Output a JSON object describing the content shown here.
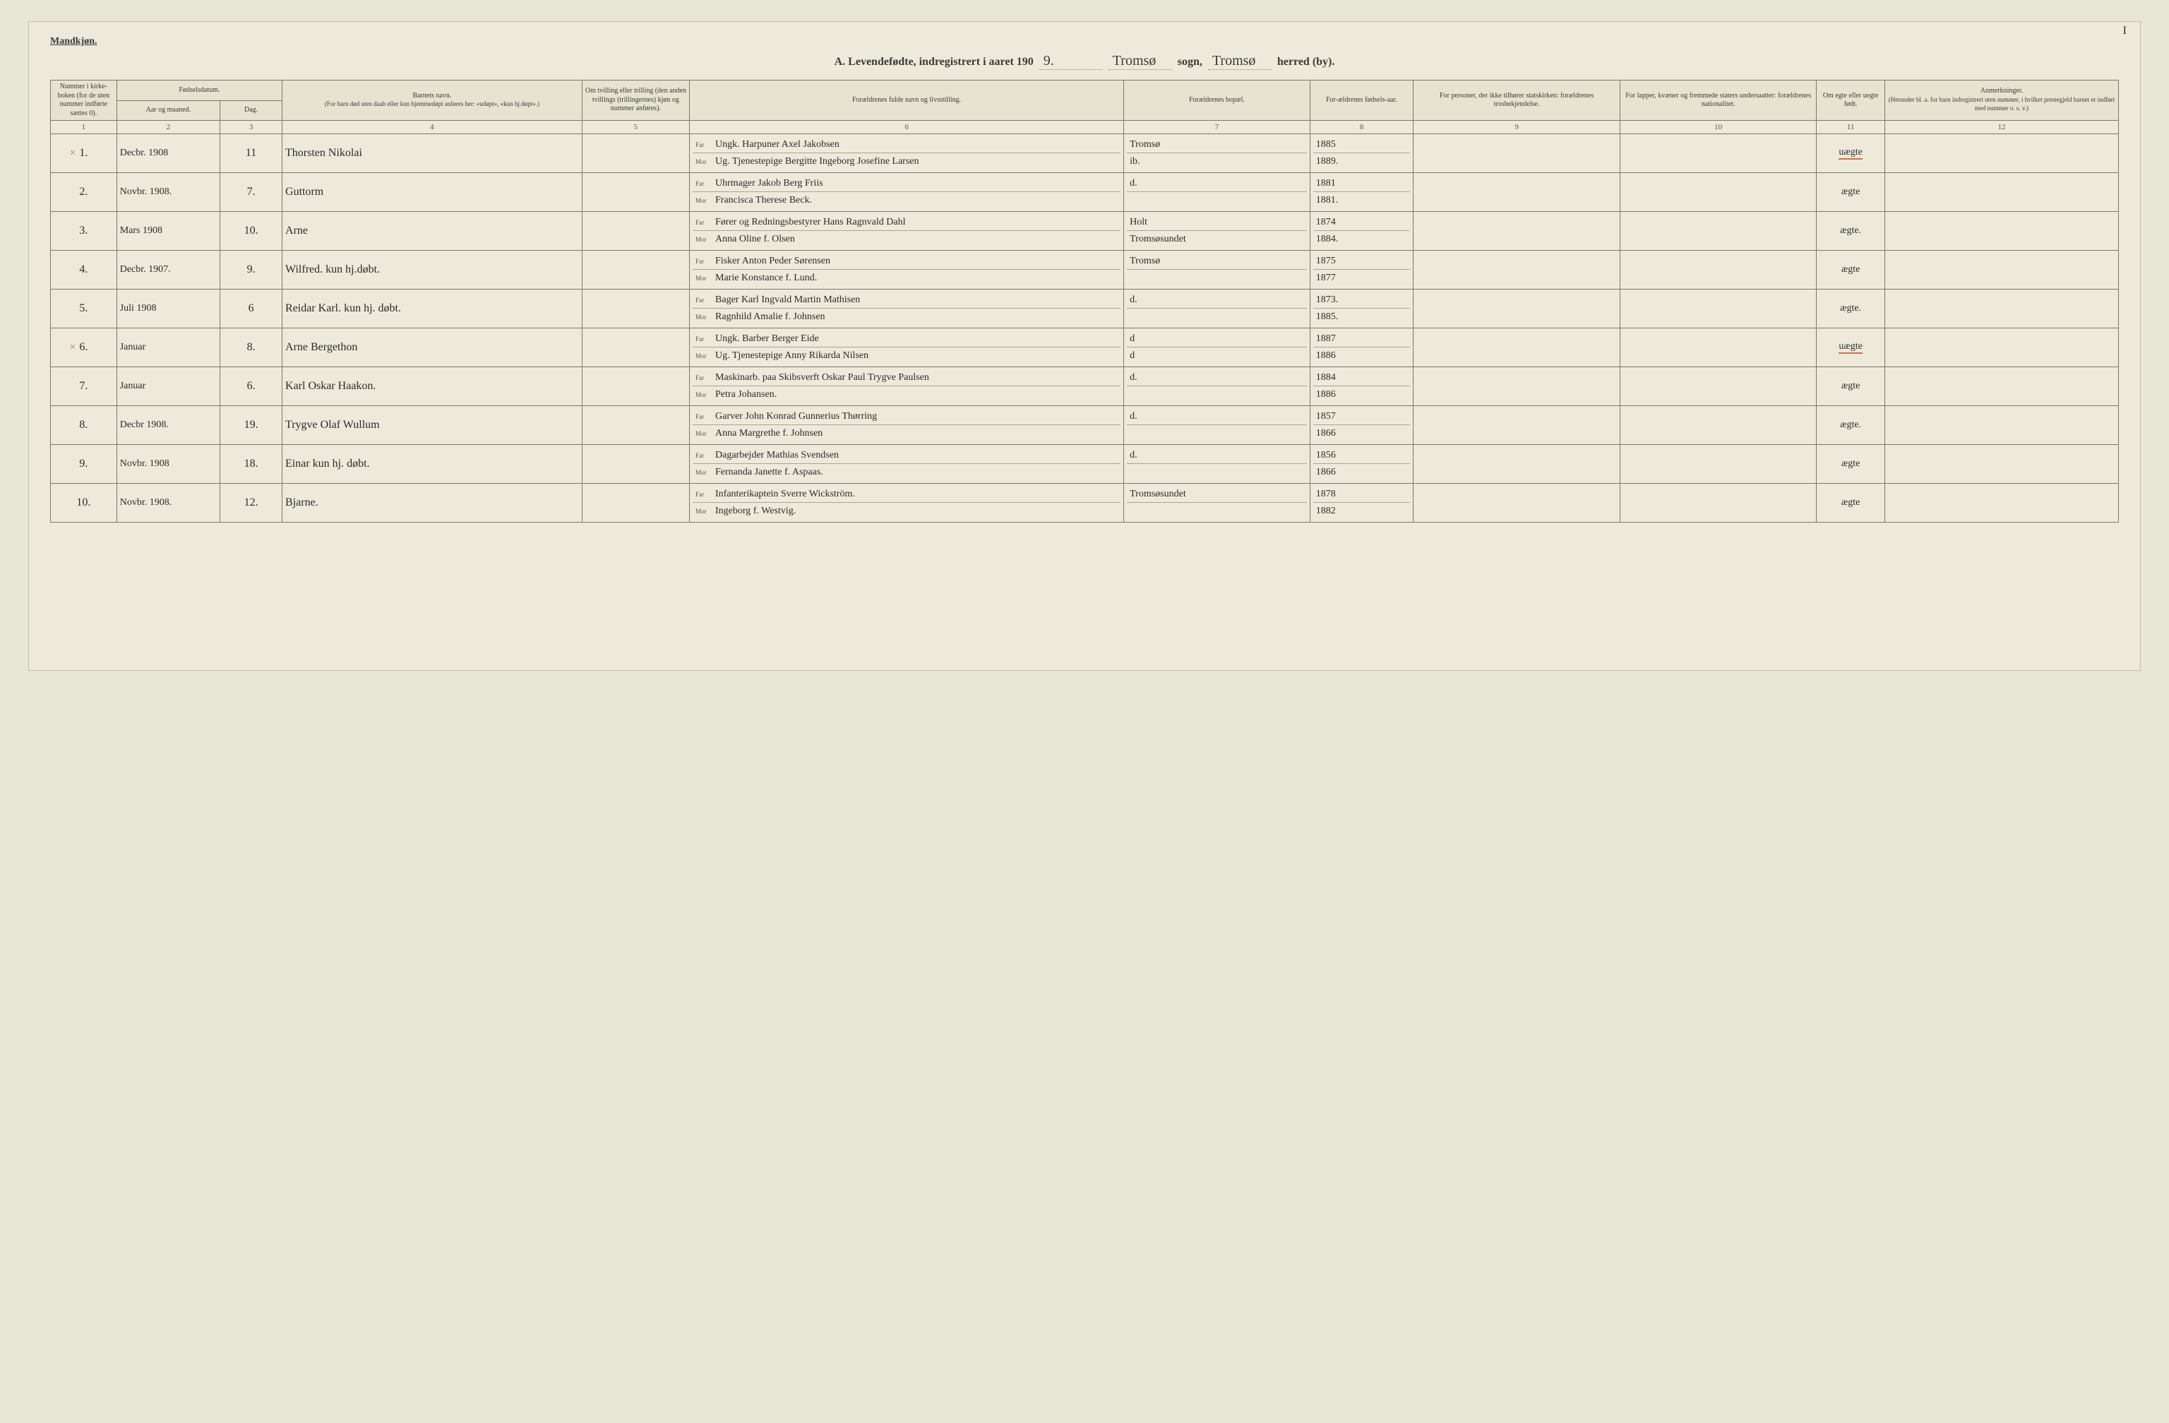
{
  "page_number": "I",
  "gender_label": "Mandkjøn.",
  "title": {
    "prefix": "A.  Levendefødte, indregistrert i aaret 190",
    "year_suffix": "9.",
    "sogn": "Tromsø",
    "sogn_label": "sogn,",
    "herred": "Tromsø",
    "herred_label": "herred (by)."
  },
  "headers": {
    "c1": "Nummer i kirke-boken (for de uten nummer indførte sættes 0).",
    "c2_group": "Fødselsdatum.",
    "c2a": "Aar og maaned.",
    "c2b": "Dag.",
    "c4": "Barnets navn.",
    "c4_sub": "(For barn død uten daab eller kun hjemmedøpt anføres her: «udøpt», «kun hj.døpt».)",
    "c5": "Om tvilling eller trilling (den anden tvillings (trillingernes) kjøn og nummer anføres).",
    "c6": "Forældrenes fulde navn og livsstilling.",
    "c7": "Forældrenes bopæl.",
    "c8": "For-ældrenes fødsels-aar.",
    "c9": "For personer, der ikke tilhører statskirken: forældrenes trosbekjendelse.",
    "c10": "For lapper, kvæner og fremmede staters undersaatter: forældrenes nationalitet.",
    "c11": "Om egte eller uegte født.",
    "c12": "Anmerkninger.",
    "c12_sub": "(Herunder bl. a. for barn indregistrert uten nummer, i hvilket prestegjeld barnet er indført med nummer o. s. v.)"
  },
  "colnums": [
    "1",
    "2",
    "3",
    "4",
    "5",
    "6",
    "7",
    "8",
    "9",
    "10",
    "11",
    "12"
  ],
  "rows": [
    {
      "num": "1.",
      "month": "Decbr. 1908",
      "day": "11",
      "name": "Thorsten Nikolai",
      "far": "Ungk. Harpuner Axel Jakobsen",
      "mor": "Ug. Tjenestepige Bergitte Ingeborg Josefine Larsen",
      "bopel_far": "Tromsø",
      "bopel_mor": "ib.",
      "year_far": "1885",
      "year_mor": "1889.",
      "egte": "uægte",
      "xmark": true,
      "redline": true
    },
    {
      "num": "2.",
      "month": "Novbr. 1908.",
      "day": "7.",
      "name": "Guttorm",
      "far": "Uhrmager Jakob Berg Friis",
      "mor": "Francisca Therese Beck.",
      "bopel_far": "d.",
      "bopel_mor": "",
      "year_far": "1881",
      "year_mor": "1881.",
      "egte": "ægte"
    },
    {
      "num": "3.",
      "month": "Mars 1908",
      "day": "10.",
      "name": "Arne",
      "far": "Fører og Redningsbestyrer Hans Ragnvald Dahl",
      "mor": "Anna Oline f. Olsen",
      "bopel_far": "Holt",
      "bopel_mor": "Tromsøsundet",
      "year_far": "1874",
      "year_mor": "1884.",
      "egte": "ægte."
    },
    {
      "num": "4.",
      "month": "Decbr. 1907.",
      "day": "9.",
      "name": "Wilfred. kun hj.døbt.",
      "far": "Fisker Anton Peder Sørensen",
      "mor": "Marie Konstance f. Lund.",
      "bopel_far": "Tromsø",
      "bopel_mor": "",
      "year_far": "1875",
      "year_mor": "1877",
      "egte": "ægte"
    },
    {
      "num": "5.",
      "month": "Juli 1908",
      "day": "6",
      "name": "Reidar Karl. kun hj. døbt.",
      "far": "Bager Karl Ingvald Martin Mathisen",
      "mor": "Ragnhild Amalie f. Johnsen",
      "bopel_far": "d.",
      "bopel_mor": "",
      "year_far": "1873.",
      "year_mor": "1885.",
      "egte": "ægte."
    },
    {
      "num": "6.",
      "month": "Januar",
      "day": "8.",
      "name": "Arne Bergethon",
      "far": "Ungk. Barber Berger Eide",
      "mor": "Ug. Tjenestepige Anny Rikarda Nilsen",
      "bopel_far": "d",
      "bopel_mor": "d",
      "year_far": "1887",
      "year_mor": "1886",
      "egte": "uægte",
      "xmark": true,
      "redline": true
    },
    {
      "num": "7.",
      "month": "Januar",
      "day": "6.",
      "name": "Karl Oskar Haakon.",
      "far": "Maskinarb. paa Skibsverft Oskar Paul Trygve Paulsen",
      "mor": "Petra Johansen.",
      "bopel_far": "d.",
      "bopel_mor": "",
      "year_far": "1884",
      "year_mor": "1886",
      "egte": "ægte"
    },
    {
      "num": "8.",
      "month": "Decbr 1908.",
      "day": "19.",
      "name": "Trygve Olaf Wullum",
      "far": "Garver John Konrad Gunnerius Thørring",
      "mor": "Anna Margrethe f. Johnsen",
      "bopel_far": "d.",
      "bopel_mor": "",
      "year_far": "1857",
      "year_mor": "1866",
      "egte": "ægte."
    },
    {
      "num": "9.",
      "month": "Novbr. 1908",
      "day": "18.",
      "name": "Einar kun hj. døbt.",
      "far": "Dagarbejder Mathias Svendsen",
      "mor": "Fernanda Janette f. Aspaas.",
      "bopel_far": "d.",
      "bopel_mor": "",
      "year_far": "1856",
      "year_mor": "1866",
      "egte": "ægte"
    },
    {
      "num": "10.",
      "month": "Novbr. 1908.",
      "day": "12.",
      "name": "Bjarne.",
      "far": "Infanterikaptein Sverre Wickström.",
      "mor": "Ingeborg f. Westvig.",
      "bopel_far": "Tromsøsundet",
      "bopel_mor": "",
      "year_far": "1878",
      "year_mor": "1882",
      "egte": "ægte"
    }
  ],
  "colors": {
    "page_bg": "#edeadc",
    "border": "#7a7868",
    "red": "#d07040"
  },
  "column_widths_pct": [
    3.2,
    5.0,
    3.0,
    14.5,
    5.2,
    21.0,
    9.0,
    5.0,
    10.0,
    9.5,
    3.3,
    11.3
  ]
}
